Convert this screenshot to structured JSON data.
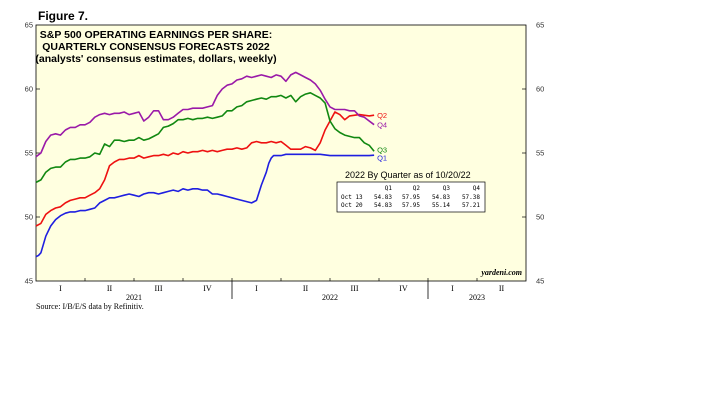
{
  "figure_label": "Figure 7.",
  "source": "Source: I/B/E/S data by Refinitiv.",
  "chart_data": {
    "type": "line",
    "title_lines": [
      "S&P 500 OPERATING EARNINGS PER SHARE:",
      "QUARTERLY CONSENSUS FORECASTS 2022",
      "(analysts' consensus estimates, dollars, weekly)"
    ],
    "ylim": [
      45,
      65
    ],
    "yticks": [
      45,
      50,
      55,
      60,
      65
    ],
    "quarters": [
      "I",
      "II",
      "III",
      "IV",
      "I",
      "II",
      "III",
      "IV",
      "I",
      "II"
    ],
    "years": [
      "2021",
      "2022",
      "2023"
    ],
    "credit": "yardeni.com",
    "colors": {
      "Q1": "#1f1fe0",
      "Q2": "#ee1111",
      "Q3": "#118811",
      "Q4": "#9a1aa8",
      "background": "#ffffe0"
    },
    "series": [
      {
        "name": "Q1",
        "x": [
          1.0,
          1.05,
          1.1,
          1.2,
          1.3,
          1.4,
          1.5,
          1.6,
          1.7,
          1.75,
          1.8,
          1.9,
          2.0,
          2.1,
          2.2,
          2.3,
          2.4,
          2.5,
          2.6,
          2.7,
          2.8,
          2.9,
          3.0,
          3.1,
          3.2,
          3.3,
          3.4,
          3.5,
          3.6,
          3.7,
          3.8,
          3.9,
          4.0,
          4.1,
          4.2,
          4.3,
          4.4,
          4.5,
          4.6,
          4.7,
          4.8,
          4.9,
          5.0,
          5.1,
          5.2,
          5.3,
          5.4,
          5.5,
          5.6,
          5.7,
          5.75,
          5.8,
          5.85,
          5.9,
          6.0,
          6.1,
          6.2,
          6.4,
          6.6,
          6.8,
          7.0,
          7.2,
          7.4,
          7.6,
          7.8,
          7.9
        ],
        "values": [
          46.9,
          47.0,
          47.2,
          48.5,
          49.3,
          49.8,
          50.1,
          50.3,
          50.4,
          50.4,
          50.4,
          50.5,
          50.5,
          50.6,
          50.7,
          51.1,
          51.3,
          51.5,
          51.5,
          51.6,
          51.7,
          51.8,
          51.7,
          51.6,
          51.8,
          51.9,
          51.9,
          51.8,
          51.9,
          52.0,
          52.1,
          52.0,
          52.2,
          52.1,
          52.2,
          52.2,
          52.1,
          52.1,
          51.8,
          51.8,
          51.7,
          51.6,
          51.5,
          51.4,
          51.3,
          51.2,
          51.1,
          51.3,
          52.5,
          53.5,
          54.2,
          54.6,
          54.8,
          54.8,
          54.8,
          54.9,
          54.9,
          54.9,
          54.9,
          54.9,
          54.8,
          54.8,
          54.8,
          54.8,
          54.8,
          54.83
        ]
      },
      {
        "name": "Q2",
        "x": [
          1.0,
          1.1,
          1.2,
          1.3,
          1.4,
          1.5,
          1.6,
          1.7,
          1.8,
          1.9,
          2.0,
          2.1,
          2.2,
          2.3,
          2.4,
          2.5,
          2.6,
          2.7,
          2.8,
          2.9,
          3.0,
          3.1,
          3.2,
          3.3,
          3.4,
          3.5,
          3.6,
          3.7,
          3.8,
          3.9,
          4.0,
          4.1,
          4.2,
          4.3,
          4.4,
          4.5,
          4.6,
          4.7,
          4.8,
          4.9,
          5.0,
          5.1,
          5.2,
          5.3,
          5.4,
          5.5,
          5.6,
          5.7,
          5.8,
          5.9,
          6.0,
          6.1,
          6.2,
          6.3,
          6.4,
          6.5,
          6.6,
          6.7,
          6.8,
          6.9,
          7.0,
          7.1,
          7.2,
          7.3,
          7.4,
          7.6,
          7.8,
          7.9
        ],
        "values": [
          49.3,
          49.5,
          50.2,
          50.5,
          50.7,
          50.8,
          51.1,
          51.3,
          51.4,
          51.5,
          51.5,
          51.7,
          51.9,
          52.2,
          52.9,
          54.0,
          54.3,
          54.5,
          54.5,
          54.6,
          54.6,
          54.8,
          54.6,
          54.7,
          54.8,
          54.8,
          54.9,
          54.8,
          55.0,
          54.9,
          55.1,
          55.0,
          55.1,
          55.1,
          55.2,
          55.1,
          55.2,
          55.1,
          55.2,
          55.3,
          55.3,
          55.4,
          55.3,
          55.4,
          55.8,
          55.9,
          55.8,
          55.8,
          55.9,
          55.8,
          55.9,
          55.6,
          55.3,
          55.3,
          55.3,
          55.5,
          55.4,
          55.2,
          55.8,
          56.8,
          57.5,
          58.2,
          58.0,
          57.6,
          57.9,
          58.0,
          57.9,
          57.95
        ]
      },
      {
        "name": "Q3",
        "x": [
          1.0,
          1.1,
          1.2,
          1.3,
          1.4,
          1.5,
          1.6,
          1.7,
          1.8,
          1.9,
          2.0,
          2.1,
          2.2,
          2.3,
          2.4,
          2.5,
          2.6,
          2.7,
          2.8,
          2.9,
          3.0,
          3.1,
          3.2,
          3.3,
          3.4,
          3.5,
          3.6,
          3.7,
          3.8,
          3.9,
          4.0,
          4.1,
          4.2,
          4.3,
          4.4,
          4.5,
          4.6,
          4.7,
          4.8,
          4.9,
          5.0,
          5.1,
          5.2,
          5.3,
          5.4,
          5.5,
          5.6,
          5.7,
          5.8,
          5.9,
          6.0,
          6.1,
          6.2,
          6.3,
          6.4,
          6.5,
          6.6,
          6.7,
          6.8,
          6.9,
          7.0,
          7.1,
          7.2,
          7.3,
          7.4,
          7.5,
          7.6,
          7.7,
          7.8,
          7.9
        ],
        "values": [
          52.7,
          52.9,
          53.5,
          53.8,
          53.9,
          53.9,
          54.3,
          54.5,
          54.5,
          54.6,
          54.6,
          54.7,
          55.0,
          54.9,
          55.7,
          55.5,
          56.0,
          56.0,
          55.9,
          56.0,
          56.0,
          56.2,
          56.0,
          56.1,
          56.3,
          56.5,
          57.0,
          57.1,
          57.3,
          57.6,
          57.6,
          57.7,
          57.6,
          57.7,
          57.7,
          57.8,
          57.7,
          57.8,
          57.9,
          58.3,
          58.3,
          58.6,
          58.7,
          59.0,
          59.1,
          59.2,
          59.3,
          59.2,
          59.4,
          59.4,
          59.5,
          59.3,
          59.5,
          59.0,
          59.4,
          59.6,
          59.7,
          59.5,
          59.3,
          58.9,
          57.5,
          56.9,
          56.6,
          56.4,
          56.3,
          56.2,
          56.2,
          55.8,
          55.6,
          55.14
        ]
      },
      {
        "name": "Q4",
        "x": [
          1.0,
          1.1,
          1.2,
          1.3,
          1.4,
          1.5,
          1.6,
          1.7,
          1.8,
          1.9,
          2.0,
          2.1,
          2.2,
          2.3,
          2.4,
          2.5,
          2.6,
          2.7,
          2.8,
          2.9,
          3.0,
          3.1,
          3.2,
          3.3,
          3.4,
          3.5,
          3.6,
          3.7,
          3.8,
          3.9,
          4.0,
          4.1,
          4.2,
          4.3,
          4.4,
          4.5,
          4.6,
          4.7,
          4.8,
          4.9,
          5.0,
          5.1,
          5.2,
          5.3,
          5.4,
          5.5,
          5.6,
          5.7,
          5.8,
          5.9,
          6.0,
          6.1,
          6.2,
          6.3,
          6.4,
          6.5,
          6.6,
          6.7,
          6.8,
          6.9,
          7.0,
          7.1,
          7.2,
          7.3,
          7.4,
          7.5,
          7.6,
          7.7,
          7.8,
          7.9
        ],
        "values": [
          54.7,
          55.0,
          55.9,
          56.4,
          56.5,
          56.4,
          56.8,
          57.0,
          57.0,
          57.2,
          57.2,
          57.4,
          57.8,
          58.0,
          58.1,
          58.0,
          58.1,
          58.1,
          58.2,
          58.0,
          58.1,
          58.2,
          57.5,
          57.8,
          58.3,
          58.3,
          57.6,
          57.6,
          57.8,
          58.1,
          58.4,
          58.4,
          58.5,
          58.5,
          58.5,
          58.6,
          58.7,
          59.5,
          60.0,
          60.3,
          60.4,
          60.7,
          60.8,
          61.0,
          60.9,
          61.0,
          61.1,
          61.0,
          60.9,
          61.1,
          61.0,
          60.6,
          61.1,
          61.3,
          61.1,
          60.9,
          60.7,
          60.4,
          59.9,
          59.2,
          58.6,
          58.4,
          58.4,
          58.4,
          58.3,
          58.3,
          57.9,
          57.8,
          57.5,
          57.21
        ]
      }
    ],
    "table": {
      "title": "2022 By Quarter as of 10/20/22",
      "columns": [
        "Q1",
        "Q2",
        "Q3",
        "Q4"
      ],
      "rows": [
        {
          "label": "Oct 13",
          "values": [
            "54.83",
            "57.95",
            "54.83",
            "57.38"
          ]
        },
        {
          "label": "Oct 20",
          "values": [
            "54.83",
            "57.95",
            "55.14",
            "57.21"
          ]
        }
      ]
    }
  }
}
